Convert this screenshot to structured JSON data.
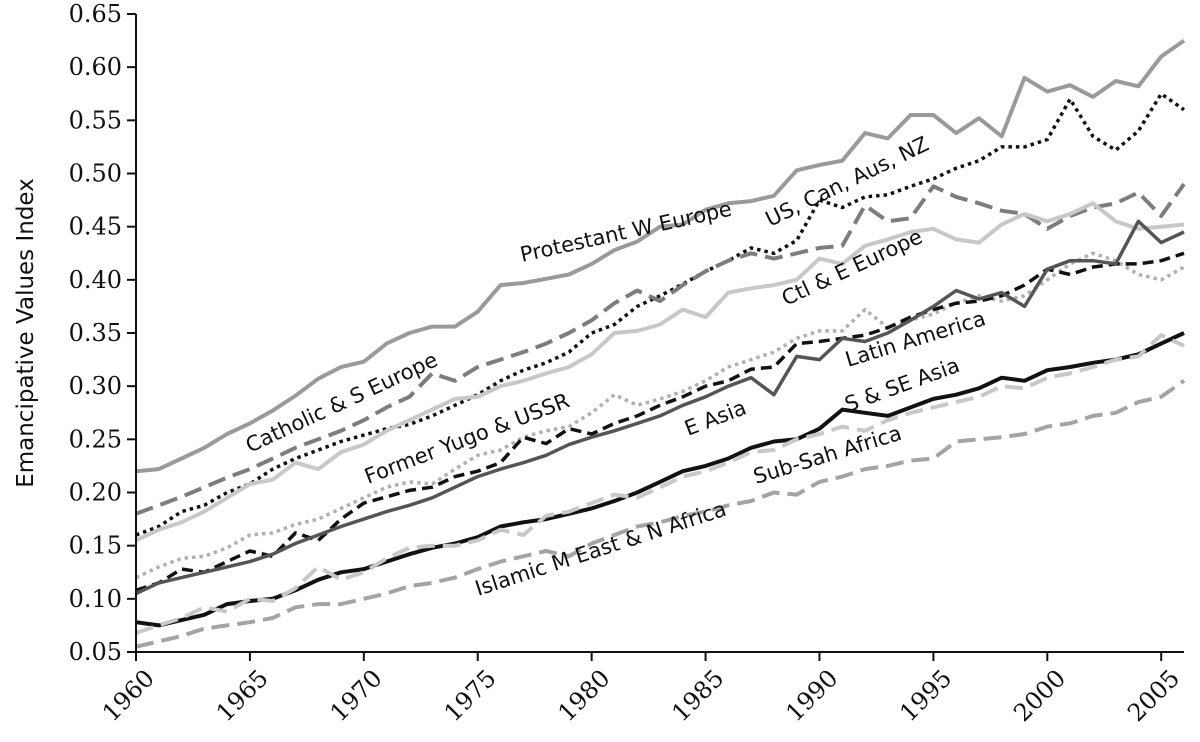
{
  "chart_data": {
    "type": "line",
    "title": "",
    "xlabel": "",
    "ylabel": "Emancipative Values Index",
    "xlim": [
      1960,
      2006
    ],
    "ylim": [
      0.05,
      0.65
    ],
    "grid": false,
    "legend": "none",
    "x_ticks": [
      1960,
      1965,
      1970,
      1975,
      1980,
      1985,
      1990,
      1995,
      2000,
      2005
    ],
    "y_ticks": [
      "0.05",
      "0.10",
      "0.15",
      "0.20",
      "0.25",
      "0.30",
      "0.35",
      "0.40",
      "0.45",
      "0.50",
      "0.55",
      "0.60",
      "0.65"
    ],
    "x": [
      1960,
      1961,
      1962,
      1963,
      1964,
      1965,
      1966,
      1967,
      1968,
      1969,
      1970,
      1971,
      1972,
      1973,
      1974,
      1975,
      1976,
      1977,
      1978,
      1979,
      1980,
      1981,
      1982,
      1983,
      1984,
      1985,
      1986,
      1987,
      1988,
      1989,
      1990,
      1991,
      1992,
      1993,
      1994,
      1995,
      1996,
      1997,
      1998,
      1999,
      2000,
      2001,
      2002,
      2003,
      2004,
      2005,
      2006
    ],
    "series": [
      {
        "name": "Protestant W Europe",
        "color": "#9a9a9a",
        "dash": "solid",
        "width": 4,
        "values": [
          0.22,
          0.222,
          0.232,
          0.242,
          0.255,
          0.265,
          0.277,
          0.291,
          0.307,
          0.318,
          0.323,
          0.34,
          0.35,
          0.356,
          0.356,
          0.37,
          0.395,
          0.397,
          0.401,
          0.405,
          0.415,
          0.428,
          0.436,
          0.45,
          0.452,
          0.466,
          0.472,
          0.474,
          0.479,
          0.503,
          0.508,
          0.512,
          0.538,
          0.533,
          0.555,
          0.555,
          0.538,
          0.552,
          0.535,
          0.59,
          0.577,
          0.583,
          0.572,
          0.587,
          0.582,
          0.61,
          0.625
        ]
      },
      {
        "name": "US, Can, Aus, NZ",
        "color": "#111111",
        "dash": "dotted",
        "width": 3.5,
        "values": [
          0.16,
          0.168,
          0.182,
          0.188,
          0.2,
          0.208,
          0.222,
          0.232,
          0.24,
          0.248,
          0.254,
          0.26,
          0.264,
          0.272,
          0.282,
          0.292,
          0.305,
          0.315,
          0.322,
          0.332,
          0.35,
          0.358,
          0.375,
          0.385,
          0.396,
          0.408,
          0.418,
          0.43,
          0.425,
          0.437,
          0.475,
          0.468,
          0.478,
          0.48,
          0.488,
          0.495,
          0.505,
          0.512,
          0.525,
          0.525,
          0.532,
          0.57,
          0.535,
          0.522,
          0.54,
          0.575,
          0.56
        ]
      },
      {
        "name": "Catholic & S Europe",
        "color": "#7d7d7d",
        "dash": "longdash",
        "width": 4,
        "values": [
          0.18,
          0.188,
          0.196,
          0.205,
          0.214,
          0.222,
          0.232,
          0.242,
          0.25,
          0.258,
          0.268,
          0.28,
          0.29,
          0.312,
          0.305,
          0.318,
          0.325,
          0.332,
          0.34,
          0.35,
          0.362,
          0.378,
          0.39,
          0.38,
          0.395,
          0.408,
          0.418,
          0.425,
          0.42,
          0.425,
          0.43,
          0.432,
          0.47,
          0.455,
          0.458,
          0.488,
          0.478,
          0.472,
          0.465,
          0.462,
          0.448,
          0.46,
          0.468,
          0.472,
          0.482,
          0.46,
          0.49
        ]
      },
      {
        "name": "Ctl & E Europe",
        "color": "#c8c8c8",
        "dash": "solid",
        "width": 4,
        "values": [
          0.155,
          0.165,
          0.172,
          0.182,
          0.195,
          0.208,
          0.212,
          0.228,
          0.222,
          0.238,
          0.245,
          0.258,
          0.268,
          0.278,
          0.288,
          0.29,
          0.3,
          0.305,
          0.312,
          0.318,
          0.33,
          0.35,
          0.352,
          0.358,
          0.372,
          0.365,
          0.388,
          0.392,
          0.395,
          0.4,
          0.42,
          0.415,
          0.432,
          0.438,
          0.445,
          0.448,
          0.438,
          0.435,
          0.452,
          0.462,
          0.455,
          0.462,
          0.472,
          0.455,
          0.448,
          0.45,
          0.452
        ]
      },
      {
        "name": "Latin America",
        "color": "#b0b0b0",
        "dash": "dotted",
        "width": 3.5,
        "values": [
          0.12,
          0.13,
          0.138,
          0.14,
          0.148,
          0.16,
          0.162,
          0.17,
          0.175,
          0.185,
          0.195,
          0.205,
          0.21,
          0.208,
          0.222,
          0.235,
          0.24,
          0.252,
          0.258,
          0.262,
          0.275,
          0.292,
          0.282,
          0.288,
          0.295,
          0.305,
          0.318,
          0.325,
          0.332,
          0.345,
          0.352,
          0.352,
          0.372,
          0.355,
          0.362,
          0.368,
          0.378,
          0.385,
          0.38,
          0.385,
          0.4,
          0.415,
          0.425,
          0.418,
          0.405,
          0.4,
          0.412
        ]
      },
      {
        "name": "E Asia",
        "color": "#111111",
        "dash": "dashed",
        "width": 3.5,
        "values": [
          0.108,
          0.115,
          0.128,
          0.125,
          0.135,
          0.145,
          0.14,
          0.162,
          0.155,
          0.175,
          0.19,
          0.196,
          0.202,
          0.205,
          0.215,
          0.22,
          0.228,
          0.252,
          0.246,
          0.26,
          0.255,
          0.265,
          0.272,
          0.282,
          0.29,
          0.3,
          0.305,
          0.316,
          0.318,
          0.34,
          0.342,
          0.345,
          0.348,
          0.355,
          0.365,
          0.372,
          0.378,
          0.38,
          0.385,
          0.395,
          0.41,
          0.405,
          0.412,
          0.415,
          0.415,
          0.418,
          0.425
        ]
      },
      {
        "name": "Former Yugo & USSR",
        "color": "#555555",
        "dash": "solid",
        "width": 3.5,
        "values": [
          0.105,
          0.115,
          0.12,
          0.125,
          0.13,
          0.135,
          0.142,
          0.152,
          0.16,
          0.168,
          0.175,
          0.182,
          0.188,
          0.195,
          0.205,
          0.215,
          0.222,
          0.228,
          0.235,
          0.245,
          0.252,
          0.258,
          0.265,
          0.272,
          0.282,
          0.29,
          0.3,
          0.308,
          0.292,
          0.328,
          0.325,
          0.345,
          0.342,
          0.35,
          0.362,
          0.375,
          0.39,
          0.382,
          0.388,
          0.375,
          0.41,
          0.418,
          0.418,
          0.415,
          0.455,
          0.435,
          0.445
        ]
      },
      {
        "name": "S & SE Asia",
        "color": "#111111",
        "dash": "solid",
        "width": 4,
        "values": [
          0.078,
          0.075,
          0.08,
          0.085,
          0.095,
          0.098,
          0.1,
          0.108,
          0.118,
          0.125,
          0.128,
          0.135,
          0.142,
          0.148,
          0.152,
          0.158,
          0.168,
          0.172,
          0.175,
          0.18,
          0.185,
          0.192,
          0.2,
          0.21,
          0.22,
          0.225,
          0.232,
          0.242,
          0.248,
          0.25,
          0.26,
          0.278,
          0.275,
          0.272,
          0.28,
          0.288,
          0.292,
          0.298,
          0.308,
          0.305,
          0.315,
          0.318,
          0.322,
          0.325,
          0.33,
          0.34,
          0.35
        ]
      },
      {
        "name": "Sub-Sah Africa",
        "color": "#c8c8c8",
        "dash": "longdash",
        "width": 4,
        "values": [
          0.068,
          0.075,
          0.082,
          0.092,
          0.088,
          0.1,
          0.098,
          0.11,
          0.13,
          0.118,
          0.125,
          0.138,
          0.148,
          0.15,
          0.15,
          0.155,
          0.165,
          0.16,
          0.178,
          0.182,
          0.19,
          0.198,
          0.195,
          0.205,
          0.215,
          0.22,
          0.228,
          0.238,
          0.24,
          0.25,
          0.255,
          0.262,
          0.258,
          0.268,
          0.275,
          0.28,
          0.285,
          0.29,
          0.3,
          0.298,
          0.308,
          0.312,
          0.318,
          0.325,
          0.328,
          0.348,
          0.338
        ]
      },
      {
        "name": "Islamic M East & N Africa",
        "color": "#a4a4a4",
        "dash": "longdash",
        "width": 4,
        "values": [
          0.055,
          0.06,
          0.065,
          0.072,
          0.075,
          0.078,
          0.082,
          0.092,
          0.095,
          0.095,
          0.1,
          0.105,
          0.112,
          0.115,
          0.12,
          0.128,
          0.135,
          0.14,
          0.145,
          0.14,
          0.152,
          0.16,
          0.168,
          0.172,
          0.178,
          0.182,
          0.188,
          0.192,
          0.2,
          0.198,
          0.21,
          0.215,
          0.222,
          0.225,
          0.23,
          0.232,
          0.248,
          0.25,
          0.252,
          0.255,
          0.262,
          0.265,
          0.272,
          0.275,
          0.285,
          0.29,
          0.305
        ]
      }
    ]
  }
}
